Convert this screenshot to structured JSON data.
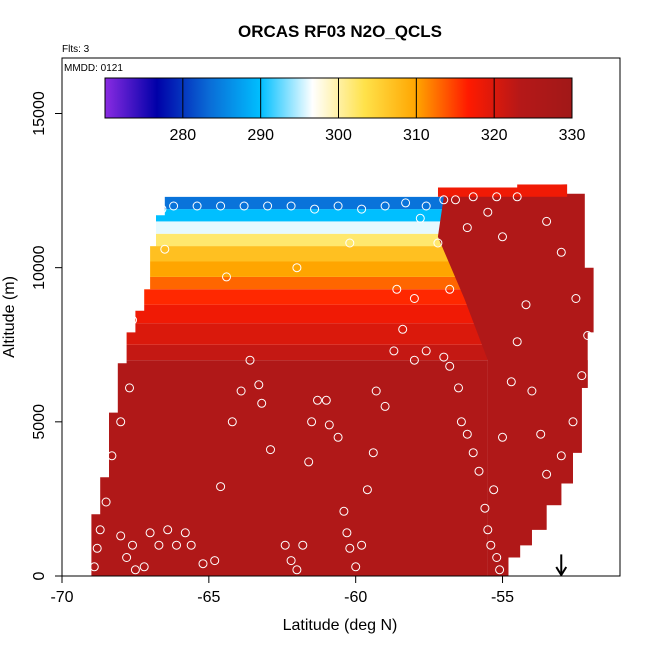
{
  "chart_data": {
    "type": "heatmap",
    "title": "ORCAS RF03 N2O_QCLS",
    "xlabel": "Latitude (deg N)",
    "ylabel": "Altitude (m)",
    "xlim": [
      -70,
      -51
    ],
    "ylim": [
      0,
      16800
    ],
    "x_ticks": [
      -70,
      -65,
      -60,
      -55
    ],
    "y_ticks": [
      0,
      5000,
      10000,
      15000
    ],
    "x_tick_labels": [
      "-70",
      "-65",
      "-60",
      "-55"
    ],
    "y_tick_labels": [
      "0",
      "5000",
      "10000",
      "15000"
    ],
    "annotations": {
      "flights": "Flts: 3",
      "date": "MMDD: 0121"
    },
    "colorbar": {
      "min": 270,
      "max": 330,
      "ticks": [
        280,
        290,
        300,
        310,
        320,
        330
      ],
      "tick_labels": [
        "280",
        "290",
        "300",
        "310",
        "320",
        "330"
      ],
      "colors": [
        "#8a2be2",
        "#0000a8",
        "#0a6bd6",
        "#00bfff",
        "#ffffff",
        "#ffe24a",
        "#ffa500",
        "#ff1a00",
        "#b51818",
        "#a11818"
      ]
    },
    "outline": [
      [
        -69.0,
        0
      ],
      [
        -69.0,
        2000
      ],
      [
        -68.7,
        2000
      ],
      [
        -68.7,
        3200
      ],
      [
        -68.4,
        3200
      ],
      [
        -68.4,
        5300
      ],
      [
        -68.1,
        5300
      ],
      [
        -68.1,
        6900
      ],
      [
        -67.8,
        6900
      ],
      [
        -67.8,
        7900
      ],
      [
        -67.5,
        7900
      ],
      [
        -67.5,
        8600
      ],
      [
        -67.2,
        8600
      ],
      [
        -67.2,
        9300
      ],
      [
        -67.0,
        9300
      ],
      [
        -67.0,
        10700
      ],
      [
        -66.8,
        10700
      ],
      [
        -66.8,
        11700
      ],
      [
        -66.5,
        11700
      ],
      [
        -66.5,
        12300
      ],
      [
        -57.2,
        12300
      ],
      [
        -57.2,
        12600
      ],
      [
        -54.5,
        12600
      ],
      [
        -54.5,
        12700
      ],
      [
        -52.8,
        12700
      ],
      [
        -52.8,
        12400
      ],
      [
        -52.2,
        12400
      ],
      [
        -52.2,
        10000
      ],
      [
        -51.9,
        10000
      ],
      [
        -51.9,
        7900
      ],
      [
        -52.1,
        7900
      ],
      [
        -52.1,
        6100
      ],
      [
        -52.3,
        6100
      ],
      [
        -52.3,
        4000
      ],
      [
        -52.6,
        4000
      ],
      [
        -52.6,
        3000
      ],
      [
        -53.0,
        3000
      ],
      [
        -53.0,
        2300
      ],
      [
        -53.5,
        2300
      ],
      [
        -53.5,
        1500
      ],
      [
        -54.0,
        1500
      ],
      [
        -54.0,
        1000
      ],
      [
        -54.4,
        1000
      ],
      [
        -54.4,
        600
      ],
      [
        -54.8,
        600
      ],
      [
        -54.8,
        0
      ]
    ],
    "bands": [
      {
        "y0": 0,
        "y1": 7000,
        "value": 325
      },
      {
        "y0": 7000,
        "y1": 7500,
        "value": 322
      },
      {
        "y0": 7500,
        "y1": 8200,
        "value": 320
      },
      {
        "y0": 8200,
        "y1": 8800,
        "value": 318
      },
      {
        "y0": 8800,
        "y1": 9300,
        "value": 316
      },
      {
        "y0": 9300,
        "y1": 9700,
        "value": 313
      },
      {
        "y0": 9700,
        "y1": 10200,
        "value": 310
      },
      {
        "y0": 10200,
        "y1": 10700,
        "value": 307
      },
      {
        "y0": 10700,
        "y1": 11100,
        "value": 302
      },
      {
        "y0": 11100,
        "y1": 11500,
        "value": 296
      },
      {
        "y0": 11500,
        "y1": 11900,
        "value": 290
      },
      {
        "y0": 11900,
        "y1": 12300,
        "value": 284
      }
    ],
    "east_region": {
      "x_start": -55.5,
      "value": 325
    },
    "top_fringe": {
      "x0": -57.2,
      "x1": -52.8,
      "y0": 12300,
      "y1": 12700,
      "value": 318
    },
    "sample_points": [
      [
        -68.9,
        300
      ],
      [
        -68.8,
        900
      ],
      [
        -68.7,
        1500
      ],
      [
        -68.5,
        2400
      ],
      [
        -68.3,
        3900
      ],
      [
        -68.0,
        5000
      ],
      [
        -67.7,
        6100
      ],
      [
        -67.6,
        8300
      ],
      [
        -67.3,
        9500
      ],
      [
        -67.0,
        11000
      ],
      [
        -66.6,
        11900
      ],
      [
        -68.0,
        1300
      ],
      [
        -67.8,
        600
      ],
      [
        -67.6,
        1000
      ],
      [
        -67.5,
        200
      ],
      [
        -67.2,
        300
      ],
      [
        -67.0,
        1400
      ],
      [
        -66.7,
        1000
      ],
      [
        -66.4,
        1500
      ],
      [
        -66.1,
        1000
      ],
      [
        -65.8,
        1400
      ],
      [
        -65.6,
        1000
      ],
      [
        -65.2,
        400
      ],
      [
        -64.8,
        500
      ],
      [
        -64.6,
        2900
      ],
      [
        -64.2,
        5000
      ],
      [
        -63.9,
        6000
      ],
      [
        -63.6,
        7000
      ],
      [
        -63.3,
        6200
      ],
      [
        -63.2,
        5600
      ],
      [
        -62.9,
        4100
      ],
      [
        -62.4,
        1000
      ],
      [
        -62.2,
        500
      ],
      [
        -62.0,
        200
      ],
      [
        -61.8,
        1000
      ],
      [
        -61.6,
        3700
      ],
      [
        -61.5,
        5000
      ],
      [
        -61.3,
        5700
      ],
      [
        -61.0,
        5700
      ],
      [
        -60.9,
        4900
      ],
      [
        -60.6,
        4500
      ],
      [
        -60.4,
        2100
      ],
      [
        -60.3,
        1400
      ],
      [
        -60.2,
        900
      ],
      [
        -60.0,
        300
      ],
      [
        -59.8,
        1000
      ],
      [
        -59.6,
        2800
      ],
      [
        -59.4,
        4000
      ],
      [
        -59.3,
        6000
      ],
      [
        -59.0,
        5500
      ],
      [
        -58.7,
        7300
      ],
      [
        -58.4,
        8000
      ],
      [
        -58.0,
        7000
      ],
      [
        -57.6,
        7300
      ],
      [
        -57.0,
        7100
      ],
      [
        -56.8,
        6800
      ],
      [
        -56.5,
        6100
      ],
      [
        -56.4,
        5000
      ],
      [
        -56.2,
        4600
      ],
      [
        -56.0,
        4000
      ],
      [
        -55.8,
        3400
      ],
      [
        -55.6,
        2200
      ],
      [
        -55.5,
        1500
      ],
      [
        -55.4,
        1000
      ],
      [
        -55.2,
        600
      ],
      [
        -55.1,
        200
      ],
      [
        -55.3,
        2800
      ],
      [
        -55.0,
        4500
      ],
      [
        -54.7,
        6300
      ],
      [
        -54.5,
        7600
      ],
      [
        -54.2,
        8800
      ],
      [
        -54.0,
        6000
      ],
      [
        -53.7,
        4600
      ],
      [
        -53.5,
        3300
      ],
      [
        -53.0,
        3900
      ],
      [
        -52.6,
        5000
      ],
      [
        -52.3,
        6500
      ],
      [
        -52.1,
        7800
      ],
      [
        -52.5,
        9000
      ],
      [
        -53.0,
        10500
      ],
      [
        -53.5,
        11500
      ],
      [
        -54.5,
        12300
      ],
      [
        -55.2,
        12300
      ],
      [
        -56.0,
        12300
      ],
      [
        -56.6,
        12200
      ],
      [
        -57.0,
        12200
      ],
      [
        -57.6,
        12000
      ],
      [
        -58.3,
        12100
      ],
      [
        -59.0,
        12000
      ],
      [
        -59.8,
        11900
      ],
      [
        -60.6,
        12000
      ],
      [
        -61.4,
        11900
      ],
      [
        -62.2,
        12000
      ],
      [
        -63.0,
        12000
      ],
      [
        -63.8,
        12000
      ],
      [
        -64.6,
        12000
      ],
      [
        -65.4,
        12000
      ],
      [
        -66.2,
        12000
      ],
      [
        -58.0,
        9000
      ],
      [
        -58.6,
        9300
      ],
      [
        -56.8,
        9300
      ],
      [
        -57.2,
        10800
      ],
      [
        -56.2,
        11300
      ],
      [
        -55.5,
        11800
      ],
      [
        -66.5,
        10600
      ],
      [
        -64.4,
        9700
      ],
      [
        -62.0,
        10000
      ],
      [
        -60.2,
        10800
      ],
      [
        -57.8,
        11600
      ],
      [
        -55.0,
        11000
      ]
    ],
    "arrow": {
      "x": -53.0,
      "y_top": 700,
      "y_bottom": 0
    }
  }
}
